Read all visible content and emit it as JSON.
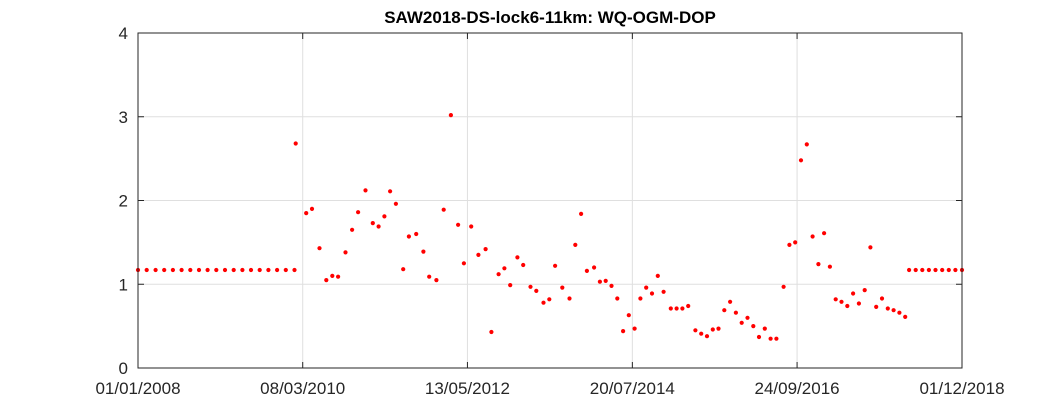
{
  "colors": {
    "marker": "#ff0000",
    "grid": "#dfdfdf",
    "axis": "#262626"
  },
  "chart_data": {
    "type": "scatter",
    "title": "SAW2018-DS-lock6-11km: WQ-OGM-DOP",
    "xlabel": "",
    "ylabel": "",
    "xlim": [
      "01/01/2008",
      "01/12/2018"
    ],
    "ylim": [
      0,
      4
    ],
    "grid": true,
    "x_tick_labels": [
      "01/01/2008",
      "08/03/2010",
      "13/05/2012",
      "20/07/2014",
      "24/09/2016",
      "01/12/2018"
    ],
    "y_tick_labels": [
      "0",
      "1",
      "2",
      "3",
      "4"
    ],
    "series": [
      {
        "marker": "dot",
        "points": [
          [
            "2008-01-01",
            1.17
          ],
          [
            "2008-02-12",
            1.17
          ],
          [
            "2008-03-26",
            1.17
          ],
          [
            "2008-05-07",
            1.17
          ],
          [
            "2008-06-18",
            1.17
          ],
          [
            "2008-07-30",
            1.17
          ],
          [
            "2008-09-10",
            1.17
          ],
          [
            "2008-10-22",
            1.17
          ],
          [
            "2008-12-03",
            1.17
          ],
          [
            "2009-01-14",
            1.17
          ],
          [
            "2009-02-25",
            1.17
          ],
          [
            "2009-04-08",
            1.17
          ],
          [
            "2009-05-20",
            1.17
          ],
          [
            "2009-07-01",
            1.17
          ],
          [
            "2009-08-12",
            1.17
          ],
          [
            "2009-09-23",
            1.17
          ],
          [
            "2009-11-04",
            1.17
          ],
          [
            "2009-12-16",
            1.17
          ],
          [
            "2010-01-27",
            1.17
          ],
          [
            "2010-02-02",
            2.68
          ],
          [
            "2010-03-25",
            1.85
          ],
          [
            "2010-04-22",
            1.9
          ],
          [
            "2010-05-28",
            1.43
          ],
          [
            "2010-06-30",
            1.05
          ],
          [
            "2010-07-29",
            1.1
          ],
          [
            "2010-08-26",
            1.09
          ],
          [
            "2010-10-01",
            1.38
          ],
          [
            "2010-11-02",
            1.65
          ],
          [
            "2010-12-01",
            1.86
          ],
          [
            "2011-01-06",
            2.12
          ],
          [
            "2011-02-10",
            1.73
          ],
          [
            "2011-03-10",
            1.69
          ],
          [
            "2011-04-07",
            1.81
          ],
          [
            "2011-05-05",
            2.11
          ],
          [
            "2011-06-02",
            1.96
          ],
          [
            "2011-07-07",
            1.18
          ],
          [
            "2011-08-04",
            1.57
          ],
          [
            "2011-09-08",
            1.6
          ],
          [
            "2011-10-13",
            1.39
          ],
          [
            "2011-11-10",
            1.09
          ],
          [
            "2011-12-15",
            1.05
          ],
          [
            "2012-01-19",
            1.89
          ],
          [
            "2012-02-23",
            3.02
          ],
          [
            "2012-03-29",
            1.71
          ],
          [
            "2012-04-26",
            1.25
          ],
          [
            "2012-05-31",
            1.69
          ],
          [
            "2012-07-05",
            1.35
          ],
          [
            "2012-08-09",
            1.42
          ],
          [
            "2012-09-06",
            0.43
          ],
          [
            "2012-10-11",
            1.12
          ],
          [
            "2012-11-08",
            1.19
          ],
          [
            "2012-12-06",
            0.99
          ],
          [
            "2013-01-10",
            1.32
          ],
          [
            "2013-02-07",
            1.23
          ],
          [
            "2013-03-14",
            0.97
          ],
          [
            "2013-04-11",
            0.92
          ],
          [
            "2013-05-16",
            0.78
          ],
          [
            "2013-06-13",
            0.82
          ],
          [
            "2013-07-11",
            1.22
          ],
          [
            "2013-08-15",
            0.96
          ],
          [
            "2013-09-19",
            0.83
          ],
          [
            "2013-10-17",
            1.47
          ],
          [
            "2013-11-14",
            1.84
          ],
          [
            "2013-12-12",
            1.16
          ],
          [
            "2014-01-16",
            1.2
          ],
          [
            "2014-02-13",
            1.03
          ],
          [
            "2014-03-13",
            1.04
          ],
          [
            "2014-04-10",
            0.98
          ],
          [
            "2014-05-08",
            0.83
          ],
          [
            "2014-06-05",
            0.44
          ],
          [
            "2014-07-03",
            0.63
          ],
          [
            "2014-07-31",
            0.47
          ],
          [
            "2014-08-28",
            0.83
          ],
          [
            "2014-09-25",
            0.96
          ],
          [
            "2014-10-23",
            0.89
          ],
          [
            "2014-11-20",
            1.1
          ],
          [
            "2014-12-18",
            0.91
          ],
          [
            "2015-01-22",
            0.71
          ],
          [
            "2015-02-19",
            0.71
          ],
          [
            "2015-03-19",
            0.71
          ],
          [
            "2015-04-16",
            0.74
          ],
          [
            "2015-05-21",
            0.45
          ],
          [
            "2015-06-18",
            0.41
          ],
          [
            "2015-07-16",
            0.38
          ],
          [
            "2015-08-13",
            0.46
          ],
          [
            "2015-09-10",
            0.47
          ],
          [
            "2015-10-08",
            0.69
          ],
          [
            "2015-11-05",
            0.79
          ],
          [
            "2015-12-03",
            0.66
          ],
          [
            "2015-12-31",
            0.54
          ],
          [
            "2016-01-28",
            0.6
          ],
          [
            "2016-02-25",
            0.5
          ],
          [
            "2016-03-24",
            0.37
          ],
          [
            "2016-04-21",
            0.47
          ],
          [
            "2016-05-19",
            0.35
          ],
          [
            "2016-06-16",
            0.35
          ],
          [
            "2016-07-21",
            0.97
          ],
          [
            "2016-08-18",
            1.47
          ],
          [
            "2016-09-15",
            1.5
          ],
          [
            "2016-10-13",
            2.48
          ],
          [
            "2016-11-10",
            2.67
          ],
          [
            "2016-12-08",
            1.57
          ],
          [
            "2017-01-05",
            1.24
          ],
          [
            "2017-02-02",
            1.61
          ],
          [
            "2017-03-02",
            1.21
          ],
          [
            "2017-03-30",
            0.82
          ],
          [
            "2017-04-27",
            0.79
          ],
          [
            "2017-05-25",
            0.74
          ],
          [
            "2017-06-22",
            0.89
          ],
          [
            "2017-07-20",
            0.77
          ],
          [
            "2017-08-17",
            0.93
          ],
          [
            "2017-09-14",
            1.44
          ],
          [
            "2017-10-12",
            0.73
          ],
          [
            "2017-11-09",
            0.83
          ],
          [
            "2017-12-07",
            0.71
          ],
          [
            "2018-01-04",
            0.69
          ],
          [
            "2018-02-01",
            0.66
          ],
          [
            "2018-03-01",
            0.61
          ],
          [
            "2018-03-20",
            1.17
          ],
          [
            "2018-04-21",
            1.17
          ],
          [
            "2018-05-23",
            1.17
          ],
          [
            "2018-06-24",
            1.17
          ],
          [
            "2018-07-26",
            1.17
          ],
          [
            "2018-08-27",
            1.17
          ],
          [
            "2018-09-28",
            1.17
          ],
          [
            "2018-10-30",
            1.17
          ],
          [
            "2018-12-01",
            1.17
          ]
        ]
      }
    ]
  }
}
